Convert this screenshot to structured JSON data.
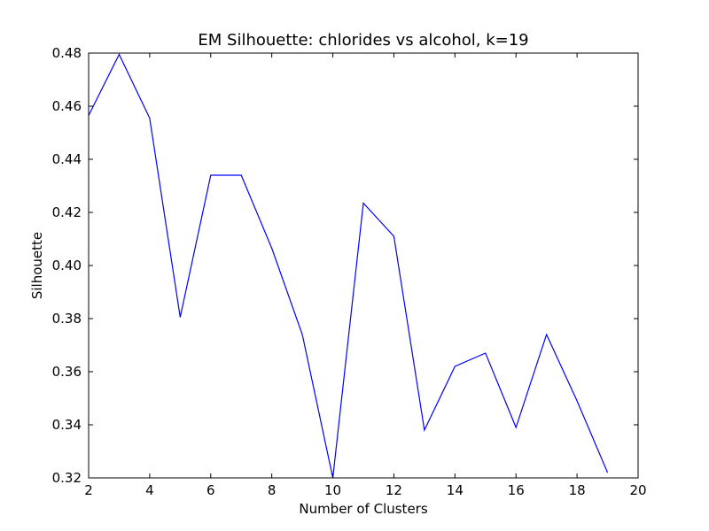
{
  "chart_data": {
    "type": "line",
    "title": "EM Silhouette: chlorides vs alcohol, k=19",
    "xlabel": "Number of Clusters",
    "ylabel": "Silhouette",
    "xlim": [
      2,
      20
    ],
    "ylim": [
      0.32,
      0.48
    ],
    "xticks": [
      2,
      4,
      6,
      8,
      10,
      12,
      14,
      16,
      18,
      20
    ],
    "yticks": [
      0.32,
      0.34,
      0.36,
      0.38,
      0.4,
      0.42,
      0.44,
      0.46,
      0.48
    ],
    "ytick_labels": [
      "0.32",
      "0.34",
      "0.36",
      "0.38",
      "0.40",
      "0.42",
      "0.44",
      "0.46",
      "0.48"
    ],
    "grid": false,
    "series": [
      {
        "color": "#0000ff",
        "x": [
          2,
          3,
          4,
          5,
          6,
          7,
          8,
          9,
          10,
          11,
          12,
          13,
          14,
          15,
          16,
          17,
          18,
          19
        ],
        "y": [
          0.4565,
          0.4795,
          0.4555,
          0.3805,
          0.434,
          0.434,
          0.4065,
          0.374,
          0.32,
          0.4235,
          0.411,
          0.338,
          0.362,
          0.367,
          0.339,
          0.374,
          0.349,
          0.322
        ]
      }
    ]
  }
}
